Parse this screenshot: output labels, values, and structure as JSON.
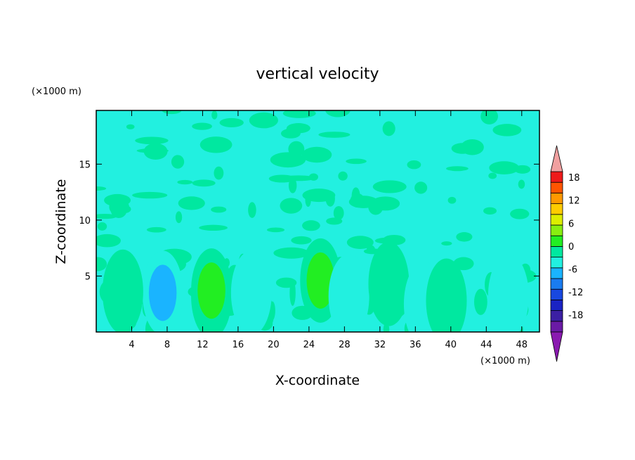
{
  "chart_data": {
    "type": "heatmap",
    "title": "vertical velocity",
    "xlabel": "X-coordinate",
    "ylabel": "Z-coordinate",
    "x_unit": "(×1000 m)",
    "y_unit": "(×1000 m)",
    "xlim": [
      0,
      50
    ],
    "ylim": [
      0,
      19.8
    ],
    "x_ticks": [
      4,
      8,
      12,
      16,
      20,
      24,
      28,
      32,
      36,
      40,
      44,
      48
    ],
    "y_ticks": [
      5,
      10,
      15
    ],
    "colorbar": {
      "levels": [
        -21,
        -18,
        -15,
        -12,
        -9,
        -6,
        -3,
        0,
        3,
        6,
        9,
        12,
        15,
        18,
        21
      ],
      "tick_labels": [
        18,
        12,
        6,
        0,
        -6,
        -12,
        -18
      ],
      "colors": [
        "#6a1aa5",
        "#3b1fa3",
        "#1a23c4",
        "#1848e0",
        "#1a7cf0",
        "#1ab4ff",
        "#22f0e0",
        "#00e8a0",
        "#22ee22",
        "#88ee11",
        "#ddee00",
        "#ffcc00",
        "#ff9900",
        "#ff5500",
        "#ee1a1a"
      ],
      "under_color": "#8a1ab0",
      "over_color": "#f0a0a0",
      "extend": "both"
    },
    "features": [
      {
        "x": 7.5,
        "z": 3.5,
        "value": -6
      },
      {
        "x": 13.0,
        "z": 3.2,
        "value": 9
      },
      {
        "x": 13.0,
        "z": 3.7,
        "value": 6
      },
      {
        "x": 17.5,
        "z": 3.5,
        "value": -3
      },
      {
        "x": 25.3,
        "z": 4.6,
        "value": 6
      },
      {
        "x": 28.5,
        "z": 3.2,
        "value": -3
      },
      {
        "x": 33.0,
        "z": 4.3,
        "value": 3
      },
      {
        "x": 37.0,
        "z": 2.5,
        "value": -3
      },
      {
        "x": 39.5,
        "z": 2.8,
        "value": 3
      },
      {
        "x": 46.5,
        "z": 3.2,
        "value": -3
      },
      {
        "x": 3.0,
        "z": 3.6,
        "value": 3
      }
    ]
  }
}
